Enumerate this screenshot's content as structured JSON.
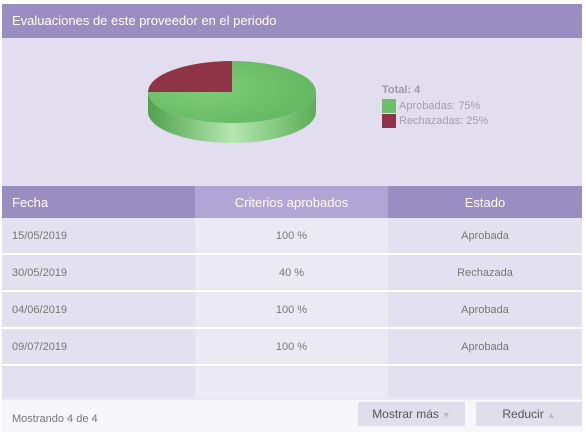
{
  "panel": {
    "title": "Evaluaciones de este proveedor en el periodo"
  },
  "chart_data": {
    "type": "pie",
    "categories": [
      "Aprobadas",
      "Rechazadas"
    ],
    "values": [
      75,
      25
    ],
    "colors": [
      "#6dbe6a",
      "#8e3446"
    ],
    "legend": {
      "total": "Total:  4",
      "items": [
        "Aprobadas: 75%",
        "Rechazadas: 25%"
      ]
    }
  },
  "table": {
    "columns": [
      "Fecha",
      "Criterios aprobados",
      "Estado"
    ],
    "rows": [
      [
        "15/05/2019",
        "100 %",
        "Aprobada"
      ],
      [
        "30/05/2019",
        "40 %",
        "Rechazada"
      ],
      [
        "04/06/2019",
        "100 %",
        "Aprobada"
      ],
      [
        "09/07/2019",
        "100 %",
        "Aprobada"
      ]
    ]
  },
  "footer": {
    "count": "Mostrando 4 de 4",
    "more_label": "Mostrar más",
    "less_label": "Reducir"
  },
  "icons": {
    "more": "triangle-down-icon",
    "less": "triangle-up-icon"
  }
}
